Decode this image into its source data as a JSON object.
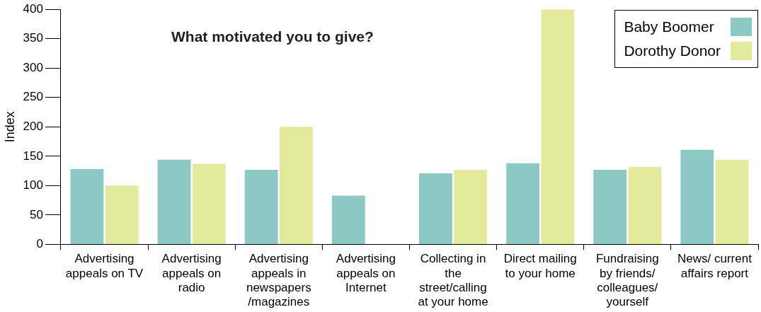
{
  "chart_data": {
    "type": "bar",
    "title": "What motivated you to give?",
    "ylabel": "Index",
    "categories": [
      "Advertising appeals on TV",
      "Advertising appeals on radio",
      "Advertising appeals in newspapers /magazines",
      "Advertising appeals on Internet",
      "Collecting in the street/calling at your home",
      "Direct mailing to your home",
      "Fundraising by friends/ colleagues/ yourself",
      "News/ current affairs report"
    ],
    "series": [
      {
        "name": "Baby Boomer",
        "color": "#8cc8c4",
        "values": [
          128,
          144,
          127,
          83,
          121,
          138,
          127,
          161
        ]
      },
      {
        "name": "Dorothy Donor",
        "color": "#e2eb9c",
        "values": [
          100,
          137,
          200,
          null,
          127,
          400,
          132,
          144
        ]
      }
    ],
    "ylim": [
      0,
      400
    ],
    "yticks": [
      0,
      50,
      100,
      150,
      200,
      250,
      300,
      350,
      400
    ],
    "grid": false,
    "legend": "top right"
  }
}
